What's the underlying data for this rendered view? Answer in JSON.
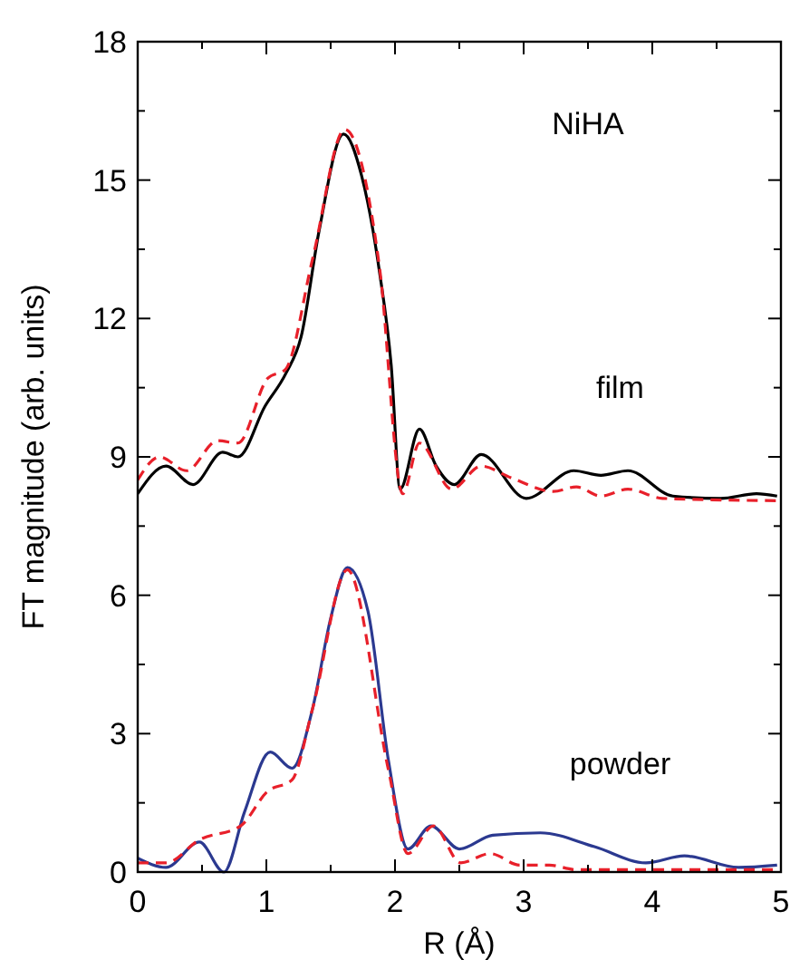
{
  "chart_data": {
    "type": "line",
    "title": "NiHA",
    "xlabel": "R (Å)",
    "ylabel": "FT magnitude (arb. units)",
    "xlim": [
      0,
      5
    ],
    "ylim": [
      0,
      18
    ],
    "xticks": [
      0,
      {
        "value": 0.5,
        "label": null
      },
      1,
      {
        "value": 1.5,
        "label": null
      },
      2,
      {
        "value": 2.5,
        "label": null
      },
      3,
      {
        "value": 3.5,
        "label": null
      },
      4,
      {
        "value": 4.5,
        "label": null
      },
      5
    ],
    "yticks": [
      0,
      {
        "value": 1.5,
        "label": null
      },
      3,
      {
        "value": 4.5,
        "label": null
      },
      6,
      {
        "value": 7.5,
        "label": null
      },
      9,
      {
        "value": 10.5,
        "label": null
      },
      12,
      {
        "value": 13.5,
        "label": null
      },
      15,
      {
        "value": 16.5,
        "label": null
      },
      18
    ],
    "grid": false,
    "series": [
      {
        "name": "film",
        "color": "#000000",
        "line_style": "solid",
        "x": [
          0,
          0.22,
          0.43,
          0.66,
          0.78,
          0.99,
          1.15,
          1.27,
          1.41,
          1.6,
          1.74,
          1.88,
          1.97,
          2.04,
          2.19,
          2.32,
          2.46,
          2.67,
          3.02,
          3.39,
          3.6,
          3.81,
          4.16,
          4.53,
          4.81,
          4.97
        ],
        "values": [
          8.2,
          8.8,
          8.4,
          9.1,
          9.0,
          10.1,
          10.8,
          11.6,
          13.9,
          16.0,
          15.1,
          13.0,
          11.0,
          8.3,
          9.6,
          8.8,
          8.4,
          9.05,
          8.1,
          8.7,
          8.6,
          8.7,
          8.15,
          8.1,
          8.2,
          8.15
        ]
      },
      {
        "color": "#e8202a",
        "line_style": "dashed",
        "x": [
          0,
          0.17,
          0.38,
          0.62,
          0.78,
          1.01,
          1.15,
          1.36,
          1.61,
          1.88,
          2.06,
          2.19,
          2.44,
          2.67,
          2.9,
          3.23,
          3.41,
          3.6,
          3.81,
          4.08,
          4.97
        ],
        "values": [
          8.5,
          9.0,
          8.7,
          9.35,
          9.3,
          10.7,
          10.9,
          13.3,
          16.1,
          13.1,
          8.2,
          9.3,
          8.3,
          8.8,
          8.55,
          8.25,
          8.35,
          8.15,
          8.3,
          8.1,
          8.05
        ]
      },
      {
        "name": "powder",
        "color": "#2b3990",
        "line_style": "solid",
        "x": [
          0,
          0.22,
          0.48,
          0.67,
          0.83,
          1.03,
          1.2,
          1.36,
          1.5,
          1.63,
          1.79,
          1.95,
          2.1,
          2.28,
          2.5,
          2.76,
          3.13,
          3.55,
          3.95,
          4.25,
          4.67,
          4.97
        ],
        "values": [
          0.3,
          0.1,
          0.65,
          0,
          1.3,
          2.6,
          2.25,
          3.55,
          5.5,
          6.6,
          5.65,
          2.4,
          0.5,
          1.0,
          0.5,
          0.8,
          0.85,
          0.55,
          0.2,
          0.35,
          0.1,
          0.15
        ]
      },
      {
        "color": "#e8202a",
        "line_style": "dashed",
        "x": [
          0,
          0.22,
          0.48,
          0.8,
          1.01,
          1.2,
          1.36,
          1.63,
          1.95,
          2.1,
          2.3,
          2.51,
          2.74,
          2.97,
          3.2,
          3.41,
          4.97
        ],
        "values": [
          0.2,
          0.2,
          0.7,
          1.0,
          1.75,
          2.0,
          3.55,
          6.55,
          2.2,
          0.4,
          1.0,
          0.2,
          0.4,
          0.15,
          0.15,
          0.05,
          0.05
        ]
      }
    ]
  }
}
